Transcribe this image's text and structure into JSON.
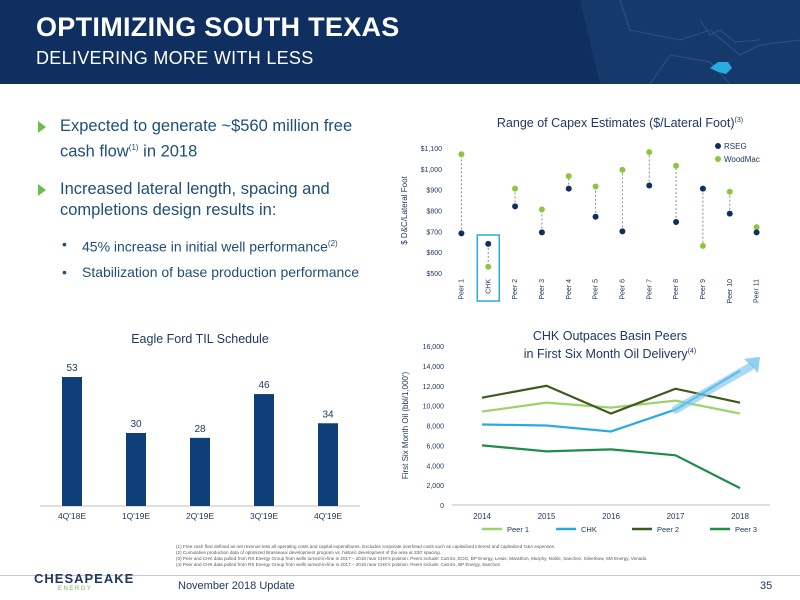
{
  "header": {
    "title": "OPTIMIZING SOUTH TEXAS",
    "subtitle": "DELIVERING MORE WITH LESS"
  },
  "bullets": {
    "b1_text": "Expected to generate ~$560 million free cash flow",
    "b1_sup": "(1)",
    "b1_tail": " in 2018",
    "b2_text": "Increased lateral length, spacing and completions design results in:",
    "s1_text": "45% increase in initial well performance",
    "s1_sup": "(2)",
    "s2_text": "Stabilization of base production performance",
    "bullet_char": "•"
  },
  "capex_chart": {
    "title": "Range of Capex Estimates ($/Lateral Foot)",
    "title_sup": "(3)"
  },
  "til_chart": {
    "title": "Eagle Ford TIL Schedule"
  },
  "oil_chart": {
    "title_line1": "CHK Outpaces Basin Peers",
    "title_line2": "in First Six Month Oil Delivery",
    "title_sup": "(4)"
  },
  "chart_data": [
    {
      "type": "scatter",
      "title": "Range of Capex Estimates ($/Lateral Foot)",
      "ylabel": "$ D&C/Lateral Foot",
      "ylim": [
        500,
        1100
      ],
      "yticks": [
        "$500",
        "$600",
        "$700",
        "$800",
        "$900",
        "$1,000",
        "$1,100"
      ],
      "ytick_values": [
        500,
        600,
        700,
        800,
        900,
        1000,
        1100
      ],
      "categories": [
        "Peer 1",
        "CHK",
        "Peer 2",
        "Peer 3",
        "Peer 4",
        "Peer 5",
        "Peer 6",
        "Peer 7",
        "Peer 8",
        "Peer 9",
        "Peer 10",
        "Peer 11"
      ],
      "highlight": "CHK",
      "legend": "top-right",
      "series": [
        {
          "name": "RSEG",
          "color": "#0e2f5f",
          "values": [
            690,
            640,
            820,
            695,
            905,
            770,
            700,
            920,
            745,
            905,
            785,
            695
          ]
        },
        {
          "name": "WoodMac",
          "color": "#8cc63f",
          "values": [
            1070,
            530,
            905,
            805,
            965,
            915,
            995,
            1080,
            1015,
            630,
            890,
            720
          ]
        }
      ]
    },
    {
      "type": "bar",
      "title": "Eagle Ford TIL Schedule",
      "categories": [
        "4Q'18E",
        "1Q'19E",
        "2Q'19E",
        "3Q'19E",
        "4Q'19E"
      ],
      "values": [
        53,
        30,
        28,
        46,
        34
      ],
      "ylim": [
        0,
        60
      ],
      "color": "#0e3f78"
    },
    {
      "type": "line",
      "title": "CHK Outpaces Basin Peers in First Six Month Oil Delivery",
      "ylabel": "First Six Month Oil (bbl/1,000')",
      "x": [
        "2014",
        "2015",
        "2016",
        "2017",
        "2018"
      ],
      "ylim": [
        0,
        16000
      ],
      "yticks": [
        "0",
        "2,000",
        "4,000",
        "6,000",
        "8,000",
        "10,000",
        "12,000",
        "14,000",
        "16,000"
      ],
      "ytick_values": [
        0,
        2000,
        4000,
        6000,
        8000,
        10000,
        12000,
        14000,
        16000
      ],
      "legend": "bottom",
      "series": [
        {
          "name": "Peer 1",
          "color": "#9bd36a",
          "values": [
            9400,
            10300,
            9800,
            10500,
            9200
          ]
        },
        {
          "name": "CHK",
          "color": "#29abe2",
          "values": [
            8100,
            8000,
            7400,
            9600,
            13500
          ]
        },
        {
          "name": "Peer 2",
          "color": "#3d5a1e",
          "values": [
            10800,
            12000,
            9200,
            11700,
            10300
          ]
        },
        {
          "name": "Peer 3",
          "color": "#1e8c4a",
          "values": [
            6000,
            5400,
            5600,
            5000,
            1700
          ]
        }
      ]
    }
  ],
  "footnotes": [
    "(1)  Free cash flow defined as net revenue less all operating costs and capital expenditures. Excludes corporate overhead costs such as capitalized interest and capitalized G&A expenses.",
    "(2)  Cumulative production data of optimized Brasseaux development program vs. historic development of the area at 330' spacing.",
    "(3)  Peer and CHK data pulled from RS Energy Group from wells turned-in-line in 2017 – 2018 near CHK's position. Peers include: Carrizo, EOG, BP Energy, Lewis, Marathon, Murphy, Noble, Sanchez, Silverbow, SM Energy, Venado.",
    "(4)  Peer and CHK data pulled from RS Energy Group from wells turned-in-line in 2017 – 2018 near CHK's position. Peers include: Carrizo, BP Energy, Sanchez."
  ],
  "footer": {
    "logo_main": "CHESAPEAKE",
    "logo_sub": "ENERGY",
    "date": "November 2018 Update",
    "page": "35"
  },
  "colors": {
    "navy": "#0e2f5f",
    "green": "#6cbf4b",
    "chk_box": "#29abe2"
  }
}
